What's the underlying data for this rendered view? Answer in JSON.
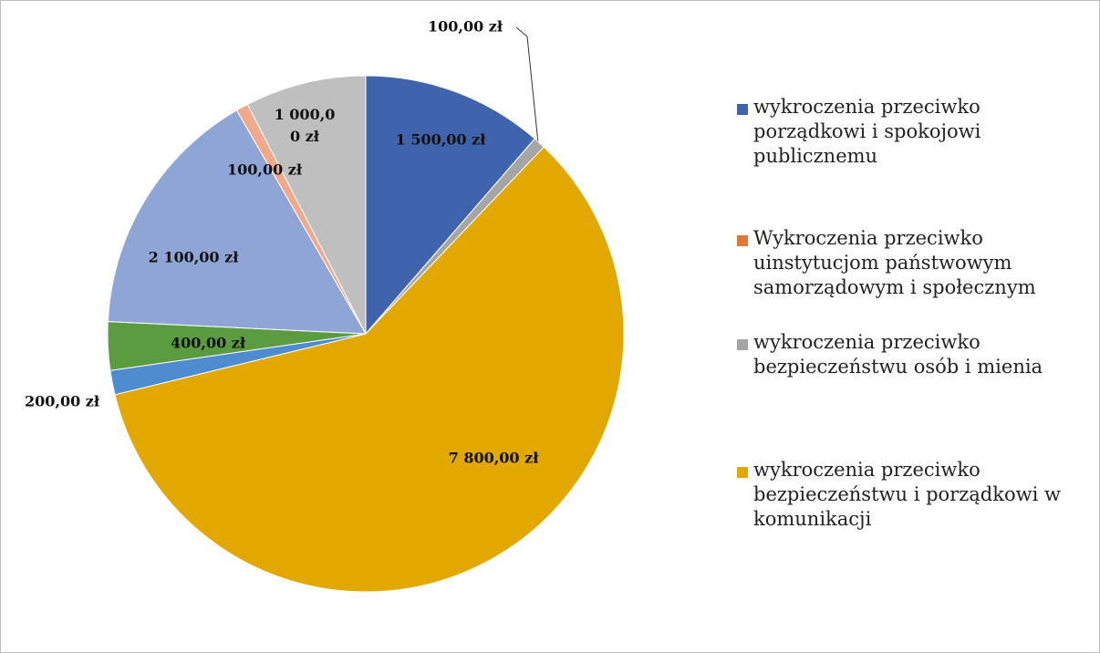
{
  "chart_data": {
    "type": "pie",
    "categories": [
      "wykroczenia przeciwko porządkowi i spokojowi publicznemu",
      "Wykroczenia przeciwko uinstytucjom państwowym samorządowym i społecznym",
      "wykroczenia przeciwko bezpieczeństwu osób i mienia",
      "wykroczenia przeciwko bezpieczeństwu i porządkowi w komunikacji",
      null,
      null,
      null,
      null,
      null
    ],
    "values": [
      1500,
      0,
      100,
      7800,
      200,
      400,
      2100,
      100,
      1000
    ],
    "value_labels": [
      "1 500,00 zł",
      null,
      "100,00 zł",
      "7 800,00 zł",
      "200,00 zł",
      "400,00 zł",
      "2 100,00 zł",
      "100,00 zł",
      "1 000,00 zł"
    ],
    "colors": [
      "#3f64ad",
      "#dd7a3a",
      "#a5a5a5",
      "#e2a800",
      "#4e8ccf",
      "#5a9c3f",
      "#8fa5d6",
      "#f0a98a",
      "#bfbfbf"
    ]
  }
}
